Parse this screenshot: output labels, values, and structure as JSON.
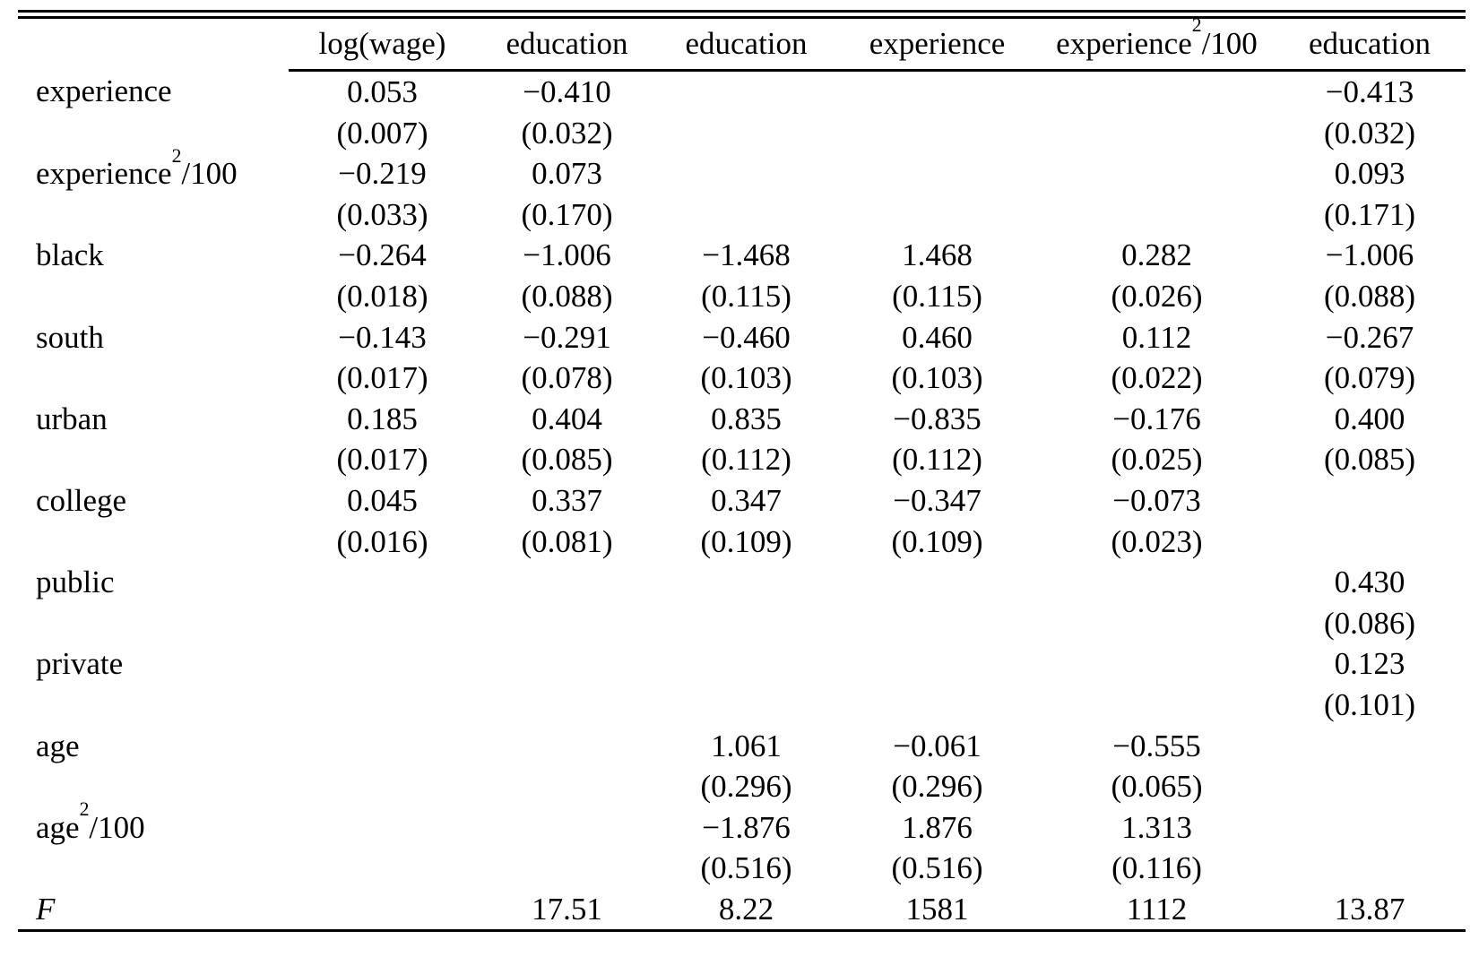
{
  "colors": {
    "text": "#000000",
    "background": "#ffffff"
  },
  "table": {
    "columns": [
      "",
      "log(wage)",
      "education",
      "education",
      "experience",
      "experience²/100",
      "education"
    ],
    "rows": [
      {
        "label": "experience",
        "italic": false,
        "single": false,
        "cells": [
          [
            "0.053",
            "(0.007)"
          ],
          [
            "−0.410",
            "(0.032)"
          ],
          [
            "",
            ""
          ],
          [
            "",
            ""
          ],
          [
            "",
            ""
          ],
          [
            "−0.413",
            "(0.032)"
          ]
        ]
      },
      {
        "label": "experience²/100",
        "italic": false,
        "single": false,
        "cells": [
          [
            "−0.219",
            "(0.033)"
          ],
          [
            "0.073",
            "(0.170)"
          ],
          [
            "",
            ""
          ],
          [
            "",
            ""
          ],
          [
            "",
            ""
          ],
          [
            "0.093",
            "(0.171)"
          ]
        ]
      },
      {
        "label": "black",
        "italic": false,
        "single": false,
        "cells": [
          [
            "−0.264",
            "(0.018)"
          ],
          [
            "−1.006",
            "(0.088)"
          ],
          [
            "−1.468",
            "(0.115)"
          ],
          [
            "1.468",
            "(0.115)"
          ],
          [
            "0.282",
            "(0.026)"
          ],
          [
            "−1.006",
            "(0.088)"
          ]
        ]
      },
      {
        "label": "south",
        "italic": false,
        "single": false,
        "cells": [
          [
            "−0.143",
            "(0.017)"
          ],
          [
            "−0.291",
            "(0.078)"
          ],
          [
            "−0.460",
            "(0.103)"
          ],
          [
            "0.460",
            "(0.103)"
          ],
          [
            "0.112",
            "(0.022)"
          ],
          [
            "−0.267",
            "(0.079)"
          ]
        ]
      },
      {
        "label": "urban",
        "italic": false,
        "single": false,
        "cells": [
          [
            "0.185",
            "(0.017)"
          ],
          [
            "0.404",
            "(0.085)"
          ],
          [
            "0.835",
            "(0.112)"
          ],
          [
            "−0.835",
            "(0.112)"
          ],
          [
            "−0.176",
            "(0.025)"
          ],
          [
            "0.400",
            "(0.085)"
          ]
        ]
      },
      {
        "label": "college",
        "italic": false,
        "single": false,
        "cells": [
          [
            "0.045",
            "(0.016)"
          ],
          [
            "0.337",
            "(0.081)"
          ],
          [
            "0.347",
            "(0.109)"
          ],
          [
            "−0.347",
            "(0.109)"
          ],
          [
            "−0.073",
            "(0.023)"
          ],
          [
            "",
            ""
          ]
        ]
      },
      {
        "label": "public",
        "italic": false,
        "single": false,
        "cells": [
          [
            "",
            ""
          ],
          [
            "",
            ""
          ],
          [
            "",
            ""
          ],
          [
            "",
            ""
          ],
          [
            "",
            ""
          ],
          [
            "0.430",
            "(0.086)"
          ]
        ]
      },
      {
        "label": "private",
        "italic": false,
        "single": false,
        "cells": [
          [
            "",
            ""
          ],
          [
            "",
            ""
          ],
          [
            "",
            ""
          ],
          [
            "",
            ""
          ],
          [
            "",
            ""
          ],
          [
            "0.123",
            "(0.101)"
          ]
        ]
      },
      {
        "label": "age",
        "italic": false,
        "single": false,
        "cells": [
          [
            "",
            ""
          ],
          [
            "",
            ""
          ],
          [
            "1.061",
            "(0.296)"
          ],
          [
            "−0.061",
            "(0.296)"
          ],
          [
            "−0.555",
            "(0.065)"
          ],
          [
            "",
            ""
          ]
        ]
      },
      {
        "label": "age²/100",
        "italic": false,
        "single": false,
        "cells": [
          [
            "",
            ""
          ],
          [
            "",
            ""
          ],
          [
            "−1.876",
            "(0.516)"
          ],
          [
            "1.876",
            "(0.516)"
          ],
          [
            "1.313",
            "(0.116)"
          ],
          [
            "",
            ""
          ]
        ]
      },
      {
        "label": "F",
        "italic": true,
        "single": true,
        "cells": [
          [
            "",
            ""
          ],
          [
            "17.51",
            ""
          ],
          [
            "8.22",
            ""
          ],
          [
            "1581",
            ""
          ],
          [
            "1112",
            ""
          ],
          [
            "13.87",
            ""
          ]
        ]
      }
    ]
  }
}
